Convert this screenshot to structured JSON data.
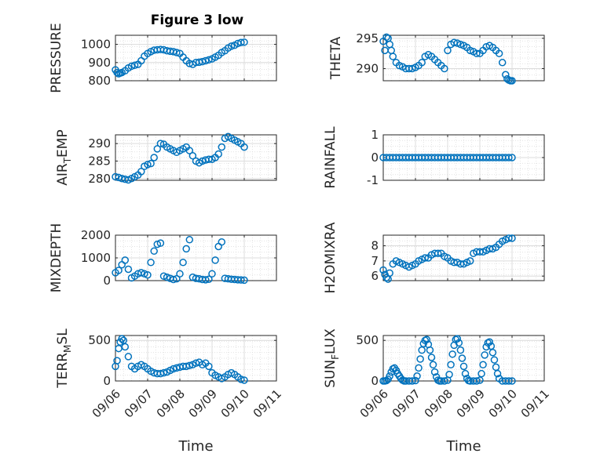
{
  "figure": {
    "title": "Figure 3 low"
  },
  "chart_data": [
    {
      "type": "scatter",
      "ylabel": "PRESSURE",
      "xlabel": "",
      "xlim": [
        0,
        5
      ],
      "ylim": [
        800,
        1050
      ],
      "yticks": [
        800,
        900,
        1000
      ],
      "ytick_labels": [
        "800",
        "900",
        "1000"
      ],
      "xticks": [
        0,
        1,
        2,
        3,
        4,
        5
      ],
      "xtick_labels": [],
      "grid": true,
      "marker_color": "#0072BD",
      "x": [
        0,
        0.05,
        0.1,
        0.15,
        0.2,
        0.3,
        0.4,
        0.5,
        0.6,
        0.7,
        0.8,
        0.9,
        1.0,
        1.1,
        1.2,
        1.3,
        1.4,
        1.5,
        1.6,
        1.7,
        1.8,
        1.9,
        2.0,
        2.1,
        2.2,
        2.3,
        2.4,
        2.5,
        2.6,
        2.7,
        2.8,
        2.9,
        3.0,
        3.1,
        3.2,
        3.3,
        3.4,
        3.5,
        3.6,
        3.7,
        3.8,
        3.9,
        4.0
      ],
      "y": [
        860,
        845,
        838,
        842,
        845,
        855,
        870,
        880,
        885,
        890,
        910,
        935,
        950,
        960,
        968,
        970,
        972,
        970,
        965,
        962,
        960,
        955,
        950,
        930,
        910,
        895,
        890,
        900,
        902,
        905,
        910,
        915,
        920,
        930,
        940,
        955,
        965,
        980,
        990,
        995,
        1005,
        1010,
        1012
      ]
    },
    {
      "type": "scatter",
      "ylabel": "THETA",
      "xlabel": "",
      "xlim": [
        0,
        5
      ],
      "ylim": [
        288,
        295.5
      ],
      "yticks": [
        290,
        295
      ],
      "ytick_labels": [
        "290",
        "295"
      ],
      "xticks": [
        0,
        1,
        2,
        3,
        4,
        5
      ],
      "xtick_labels": [],
      "grid": true,
      "marker_color": "#0072BD",
      "x": [
        0,
        0.05,
        0.1,
        0.15,
        0.2,
        0.25,
        0.3,
        0.4,
        0.5,
        0.6,
        0.7,
        0.8,
        0.9,
        1.0,
        1.1,
        1.2,
        1.3,
        1.4,
        1.5,
        1.6,
        1.7,
        1.8,
        1.9,
        2.0,
        2.1,
        2.2,
        2.3,
        2.4,
        2.5,
        2.6,
        2.7,
        2.8,
        2.9,
        3.0,
        3.1,
        3.2,
        3.3,
        3.4,
        3.5,
        3.6,
        3.7,
        3.8,
        3.85,
        3.9,
        3.95,
        4.0
      ],
      "y": [
        294.5,
        293.0,
        295.2,
        295.0,
        294.0,
        293.0,
        292.0,
        291.0,
        290.5,
        290.3,
        290.0,
        290.0,
        290.0,
        290.2,
        290.5,
        291.0,
        292.0,
        292.3,
        292.0,
        291.5,
        291.0,
        290.5,
        290.0,
        293.0,
        294.0,
        294.3,
        294.2,
        294.0,
        293.8,
        293.5,
        293.0,
        292.8,
        292.5,
        292.5,
        293.0,
        293.6,
        293.8,
        293.5,
        293.0,
        292.5,
        291.0,
        289.0,
        288.3,
        288.1,
        288.0,
        288.0
      ]
    },
    {
      "type": "scatter",
      "ylabel": "AIR_TEMP",
      "xlabel": "",
      "xlim": [
        0,
        5
      ],
      "ylim": [
        279.5,
        292.5
      ],
      "yticks": [
        280,
        285,
        290
      ],
      "ytick_labels": [
        "280",
        "285",
        "290"
      ],
      "xticks": [
        0,
        1,
        2,
        3,
        4,
        5
      ],
      "xtick_labels": [],
      "grid": true,
      "marker_color": "#0072BD",
      "x": [
        0,
        0.1,
        0.2,
        0.3,
        0.4,
        0.5,
        0.6,
        0.7,
        0.8,
        0.9,
        1.0,
        1.1,
        1.2,
        1.3,
        1.4,
        1.5,
        1.6,
        1.7,
        1.8,
        1.9,
        2.0,
        2.1,
        2.2,
        2.3,
        2.4,
        2.5,
        2.6,
        2.7,
        2.8,
        2.9,
        3.0,
        3.1,
        3.2,
        3.3,
        3.4,
        3.5,
        3.6,
        3.7,
        3.8,
        3.9,
        4.0
      ],
      "y": [
        280.5,
        280.3,
        280.0,
        279.8,
        279.6,
        280.0,
        280.5,
        281.0,
        282.0,
        283.5,
        284.0,
        284.3,
        286.0,
        288.5,
        290.0,
        289.8,
        289.0,
        288.5,
        288.0,
        287.5,
        288.0,
        288.5,
        289.0,
        288.0,
        286.5,
        285.0,
        284.5,
        285.0,
        285.3,
        285.5,
        285.5,
        286.0,
        287.0,
        289.0,
        291.5,
        292.0,
        291.5,
        291.0,
        290.5,
        290.0,
        289.0
      ]
    },
    {
      "type": "scatter",
      "ylabel": "RAINFALL",
      "xlabel": "",
      "xlim": [
        0,
        5
      ],
      "ylim": [
        -1,
        1
      ],
      "yticks": [
        -1,
        0,
        1
      ],
      "ytick_labels": [
        "-1",
        "0",
        "1"
      ],
      "xticks": [
        0,
        1,
        2,
        3,
        4,
        5
      ],
      "xtick_labels": [],
      "grid": true,
      "marker_color": "#0072BD",
      "x": [
        0,
        0.1,
        0.2,
        0.3,
        0.4,
        0.5,
        0.6,
        0.7,
        0.8,
        0.9,
        1.0,
        1.1,
        1.2,
        1.3,
        1.4,
        1.5,
        1.6,
        1.7,
        1.8,
        1.9,
        2.0,
        2.1,
        2.2,
        2.3,
        2.4,
        2.5,
        2.6,
        2.7,
        2.8,
        2.9,
        3.0,
        3.1,
        3.2,
        3.3,
        3.4,
        3.5,
        3.6,
        3.7,
        3.8,
        3.9,
        4.0
      ],
      "y": [
        0,
        0,
        0,
        0,
        0,
        0,
        0,
        0,
        0,
        0,
        0,
        0,
        0,
        0,
        0,
        0,
        0,
        0,
        0,
        0,
        0,
        0,
        0,
        0,
        0,
        0,
        0,
        0,
        0,
        0,
        0,
        0,
        0,
        0,
        0,
        0,
        0,
        0,
        0,
        0,
        0
      ]
    },
    {
      "type": "scatter",
      "ylabel": "MIXDEPTH",
      "xlabel": "",
      "xlim": [
        0,
        5
      ],
      "ylim": [
        0,
        2000
      ],
      "yticks": [
        0,
        1000,
        2000
      ],
      "ytick_labels": [
        "0",
        "1000",
        "2000"
      ],
      "xticks": [
        0,
        1,
        2,
        3,
        4,
        5
      ],
      "xtick_labels": [],
      "grid": true,
      "marker_color": "#0072BD",
      "x": [
        0,
        0.1,
        0.2,
        0.3,
        0.4,
        0.5,
        0.6,
        0.7,
        0.8,
        0.9,
        1.0,
        1.1,
        1.2,
        1.3,
        1.4,
        1.5,
        1.6,
        1.7,
        1.8,
        1.9,
        2.0,
        2.1,
        2.2,
        2.3,
        2.4,
        2.5,
        2.6,
        2.7,
        2.8,
        2.9,
        3.0,
        3.1,
        3.2,
        3.3,
        3.4,
        3.5,
        3.6,
        3.7,
        3.8,
        3.9,
        4.0
      ],
      "y": [
        350,
        450,
        700,
        900,
        500,
        120,
        200,
        300,
        350,
        300,
        250,
        800,
        1300,
        1600,
        1650,
        200,
        150,
        100,
        50,
        80,
        300,
        800,
        1400,
        1800,
        150,
        100,
        80,
        50,
        40,
        60,
        300,
        900,
        1500,
        1700,
        100,
        80,
        60,
        50,
        40,
        30,
        20
      ]
    },
    {
      "type": "scatter",
      "ylabel": "H2OMIXRA",
      "xlabel": "",
      "xlim": [
        0,
        5
      ],
      "ylim": [
        5.7,
        8.7
      ],
      "yticks": [
        6,
        7,
        8
      ],
      "ytick_labels": [
        "6",
        "7",
        "8"
      ],
      "xticks": [
        0,
        1,
        2,
        3,
        4,
        5
      ],
      "xtick_labels": [],
      "grid": true,
      "marker_color": "#0072BD",
      "x": [
        0,
        0.05,
        0.1,
        0.15,
        0.2,
        0.3,
        0.4,
        0.5,
        0.6,
        0.7,
        0.8,
        0.9,
        1.0,
        1.1,
        1.2,
        1.3,
        1.4,
        1.5,
        1.6,
        1.7,
        1.8,
        1.9,
        2.0,
        2.1,
        2.2,
        2.3,
        2.4,
        2.5,
        2.6,
        2.7,
        2.8,
        2.9,
        3.0,
        3.1,
        3.2,
        3.3,
        3.4,
        3.5,
        3.6,
        3.7,
        3.8,
        3.9,
        4.0
      ],
      "y": [
        6.4,
        6.1,
        5.9,
        5.8,
        6.2,
        6.8,
        7.0,
        6.9,
        6.8,
        6.7,
        6.6,
        6.7,
        6.8,
        7.0,
        7.1,
        7.2,
        7.2,
        7.4,
        7.5,
        7.5,
        7.5,
        7.3,
        7.2,
        7.0,
        6.9,
        6.9,
        6.8,
        6.8,
        6.9,
        7.0,
        7.5,
        7.6,
        7.6,
        7.6,
        7.7,
        7.8,
        7.8,
        7.9,
        8.1,
        8.3,
        8.4,
        8.5,
        8.5
      ]
    },
    {
      "type": "scatter",
      "ylabel": "TERR_MSL",
      "xlabel": "Time",
      "xlim": [
        0,
        5
      ],
      "ylim": [
        0,
        560
      ],
      "yticks": [
        0,
        500
      ],
      "ytick_labels": [
        "0",
        "500"
      ],
      "xticks": [
        0,
        1,
        2,
        3,
        4,
        5
      ],
      "xtick_labels": [
        "09/06",
        "09/07",
        "09/08",
        "09/09",
        "09/10",
        "09/11"
      ],
      "grid": true,
      "marker_color": "#0072BD",
      "x": [
        0,
        0.05,
        0.1,
        0.15,
        0.2,
        0.25,
        0.3,
        0.4,
        0.5,
        0.6,
        0.7,
        0.8,
        0.9,
        1.0,
        1.1,
        1.2,
        1.3,
        1.4,
        1.5,
        1.6,
        1.7,
        1.8,
        1.9,
        2.0,
        2.1,
        2.2,
        2.3,
        2.4,
        2.5,
        2.6,
        2.7,
        2.8,
        2.9,
        3.0,
        3.1,
        3.2,
        3.3,
        3.4,
        3.5,
        3.6,
        3.7,
        3.8,
        3.9,
        4.0
      ],
      "y": [
        180,
        250,
        400,
        480,
        520,
        500,
        420,
        300,
        180,
        150,
        180,
        200,
        180,
        150,
        120,
        100,
        90,
        90,
        100,
        110,
        130,
        150,
        160,
        170,
        180,
        180,
        190,
        200,
        220,
        230,
        200,
        220,
        180,
        100,
        70,
        50,
        30,
        50,
        80,
        100,
        80,
        50,
        20,
        10
      ]
    },
    {
      "type": "scatter",
      "ylabel": "SUN_FLUX",
      "xlabel": "Time",
      "xlim": [
        0,
        5
      ],
      "ylim": [
        0,
        560
      ],
      "yticks": [
        0,
        500
      ],
      "ytick_labels": [
        "0",
        "500"
      ],
      "xticks": [
        0,
        1,
        2,
        3,
        4,
        5
      ],
      "xtick_labels": [
        "09/06",
        "09/07",
        "09/08",
        "09/09",
        "09/10",
        "09/11"
      ],
      "grid": true,
      "marker_color": "#0072BD",
      "x": [
        0,
        0.05,
        0.1,
        0.15,
        0.2,
        0.25,
        0.3,
        0.35,
        0.4,
        0.45,
        0.5,
        0.55,
        0.6,
        0.65,
        0.7,
        0.8,
        0.9,
        1.0,
        1.05,
        1.1,
        1.15,
        1.2,
        1.25,
        1.3,
        1.35,
        1.4,
        1.45,
        1.5,
        1.55,
        1.6,
        1.65,
        1.7,
        1.75,
        1.8,
        1.9,
        2.0,
        2.05,
        2.1,
        2.15,
        2.2,
        2.25,
        2.3,
        2.35,
        2.4,
        2.45,
        2.5,
        2.55,
        2.6,
        2.65,
        2.7,
        2.8,
        2.9,
        3.0,
        3.05,
        3.1,
        3.15,
        3.2,
        3.25,
        3.3,
        3.35,
        3.4,
        3.45,
        3.5,
        3.55,
        3.6,
        3.7,
        3.8,
        3.9,
        4.0
      ],
      "y": [
        0,
        0,
        5,
        20,
        60,
        110,
        150,
        160,
        130,
        90,
        60,
        30,
        10,
        0,
        0,
        0,
        0,
        5,
        60,
        160,
        270,
        380,
        460,
        500,
        510,
        450,
        380,
        290,
        200,
        110,
        50,
        10,
        0,
        0,
        0,
        10,
        80,
        200,
        330,
        440,
        510,
        520,
        470,
        380,
        280,
        180,
        90,
        30,
        5,
        0,
        0,
        0,
        10,
        90,
        200,
        320,
        420,
        470,
        480,
        430,
        350,
        260,
        170,
        90,
        30,
        0,
        0,
        0,
        0
      ]
    }
  ]
}
